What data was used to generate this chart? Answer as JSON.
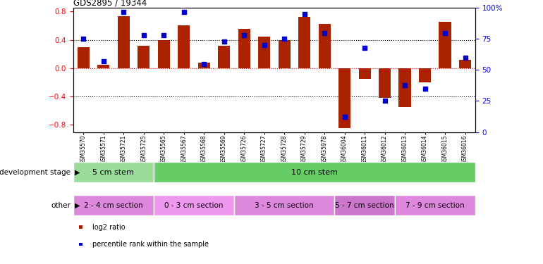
{
  "title": "GDS2895 / 19344",
  "samples": [
    "GSM35570",
    "GSM35571",
    "GSM35721",
    "GSM35725",
    "GSM35565",
    "GSM35567",
    "GSM35568",
    "GSM35569",
    "GSM35726",
    "GSM35727",
    "GSM35728",
    "GSM35729",
    "GSM35978",
    "GSM36004",
    "GSM36011",
    "GSM36012",
    "GSM36013",
    "GSM36014",
    "GSM36015",
    "GSM36016"
  ],
  "log2_ratio": [
    0.3,
    0.05,
    0.73,
    0.32,
    0.4,
    0.6,
    0.08,
    0.32,
    0.55,
    0.45,
    0.4,
    0.72,
    0.62,
    -0.85,
    -0.15,
    -0.42,
    -0.55,
    -0.2,
    0.65,
    0.12
  ],
  "percentile": [
    75,
    57,
    97,
    78,
    78,
    97,
    55,
    73,
    78,
    70,
    75,
    95,
    80,
    12,
    68,
    25,
    38,
    35,
    80,
    60
  ],
  "bar_color": "#aa2200",
  "dot_color": "#0000cc",
  "ylim_left": [
    -0.9,
    0.85
  ],
  "ylim_right": [
    0,
    100
  ],
  "yticks_left": [
    -0.8,
    -0.4,
    0.0,
    0.4,
    0.8
  ],
  "yticks_right": [
    0,
    25,
    50,
    75,
    100
  ],
  "hlines": [
    -0.4,
    0.0,
    0.4
  ],
  "hline_colors": [
    "black",
    "red",
    "black"
  ],
  "hline_styles": [
    "dotted",
    "dotted",
    "dotted"
  ],
  "dev_stage_groups": [
    {
      "label": "5 cm stem",
      "start": 0,
      "end": 4,
      "color": "#99dd99"
    },
    {
      "label": "10 cm stem",
      "start": 4,
      "end": 20,
      "color": "#66cc66"
    }
  ],
  "other_groups": [
    {
      "label": "2 - 4 cm section",
      "start": 0,
      "end": 4,
      "color": "#dd88dd"
    },
    {
      "label": "0 - 3 cm section",
      "start": 4,
      "end": 8,
      "color": "#ee99ee"
    },
    {
      "label": "3 - 5 cm section",
      "start": 8,
      "end": 13,
      "color": "#dd88dd"
    },
    {
      "label": "5 - 7 cm section",
      "start": 13,
      "end": 16,
      "color": "#cc77cc"
    },
    {
      "label": "7 - 9 cm section",
      "start": 16,
      "end": 20,
      "color": "#dd88dd"
    }
  ],
  "legend_items": [
    {
      "label": "log2 ratio",
      "color": "#aa2200"
    },
    {
      "label": "percentile rank within the sample",
      "color": "#0000cc"
    }
  ],
  "bar_width": 0.6,
  "dot_size": 22,
  "background_color": "#ffffff",
  "left_label": "development stage",
  "other_label": "other"
}
